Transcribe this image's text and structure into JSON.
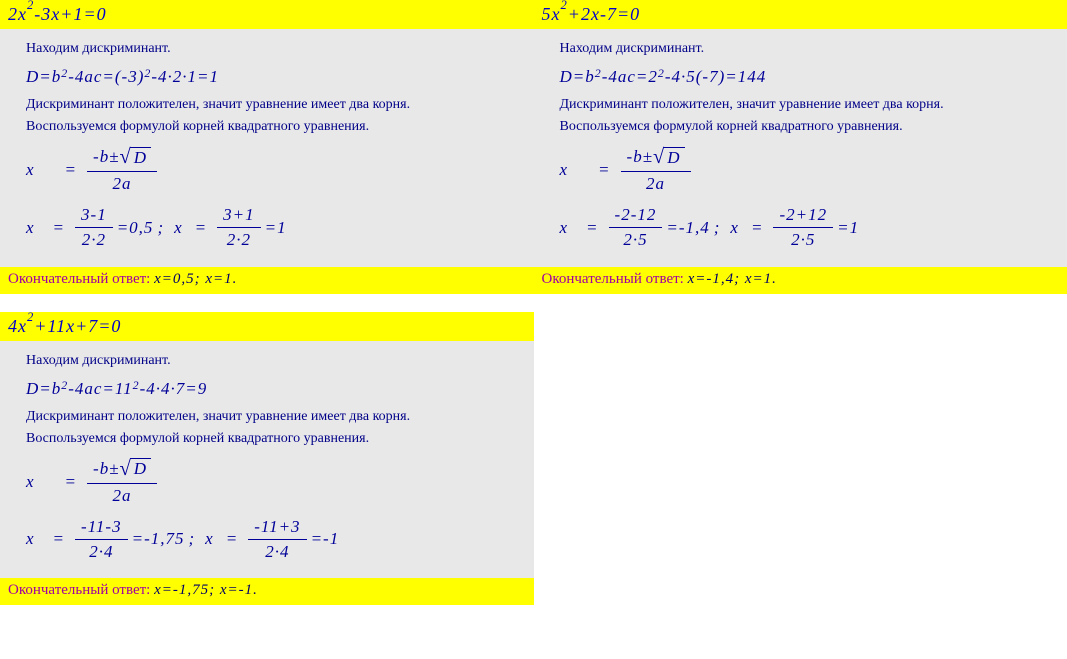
{
  "problems": [
    {
      "equation": "2x²-3x+1=0",
      "eq_parts": {
        "a": "2",
        "b": "3",
        "c": "1",
        "sign_b": "-",
        "sign_c": "+"
      },
      "step_find": "Находим дискриминант.",
      "discriminant": "D=b²-4ac=(-3)²-4·2·1=1",
      "disc_parts": {
        "bexpr": "(-3)",
        "a": "2",
        "c": "1",
        "result": "1"
      },
      "disc_pos": "Дискриминант положителен, значит уравнение имеет два корня.",
      "use_formula": "Воспользуемся формулой корней квадратного уравнения.",
      "root_formula": "x = (-b±√D)/(2a)",
      "roots": {
        "r1_num": "3-1",
        "r1_den": "2·2",
        "r1_val": "=0,5",
        "r2_num": "3+1",
        "r2_den": "2·2",
        "r2_val": "=1"
      },
      "answer_label": "Окончательный ответ:",
      "answer": "x=0,5; x=1."
    },
    {
      "equation": "5x²+2x-7=0",
      "eq_parts": {
        "a": "5",
        "b": "2",
        "c": "7",
        "sign_b": "+",
        "sign_c": "-"
      },
      "step_find": "Находим дискриминант.",
      "discriminant": "D=b²-4ac=2²-4·5(-7)=144",
      "disc_parts": {
        "bexpr": "2",
        "a": "5",
        "c": "(-7)",
        "result": "144"
      },
      "disc_pos": "Дискриминант положителен, значит уравнение имеет два корня.",
      "use_formula": "Воспользуемся формулой корней квадратного уравнения.",
      "root_formula": "x = (-b±√D)/(2a)",
      "roots": {
        "r1_num": "-2-12",
        "r1_den": "2·5",
        "r1_val": "=-1,4",
        "r2_num": "-2+12",
        "r2_den": "2·5",
        "r2_val": "=1"
      },
      "answer_label": "Окончательный ответ:",
      "answer": "x=-1,4; x=1."
    },
    {
      "equation": "4x²+11x+7=0",
      "eq_parts": {
        "a": "4",
        "b": "11",
        "c": "7",
        "sign_b": "+",
        "sign_c": "+"
      },
      "step_find": "Находим дискриминант.",
      "discriminant": "D=b²-4ac=11²-4·4·7=9",
      "disc_parts": {
        "bexpr": "11",
        "a": "4",
        "c": "7",
        "result": "9"
      },
      "disc_pos": "Дискриминант положителен, значит уравнение имеет два корня.",
      "use_formula": "Воспользуемся формулой корней квадратного уравнения.",
      "root_formula": "x = (-b±√D)/(2a)",
      "roots": {
        "r1_num": "-11-3",
        "r1_den": "2·4",
        "r1_val": "=-1,75",
        "r2_num": "-11+3",
        "r2_den": "2·4",
        "r2_val": "=-1"
      },
      "answer_label": "Окончательный ответ:",
      "answer": "x=-1,75; x=-1."
    }
  ],
  "colors": {
    "highlight": "#ffff00",
    "body_bg": "#e8e8e8",
    "text": "#000088",
    "formula": "#000099",
    "answer_label": "#a000a0"
  },
  "fonts": {
    "formula_size": 17,
    "text_size": 14,
    "header_size": 18
  }
}
